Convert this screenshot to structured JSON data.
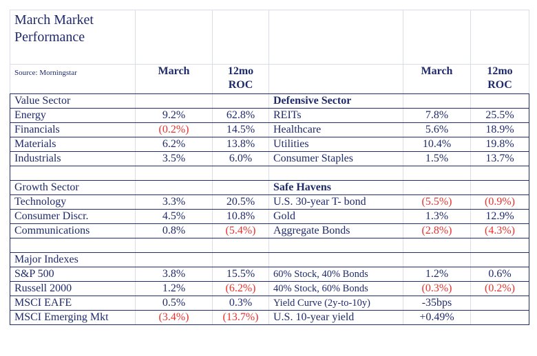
{
  "title_line1": "March Market",
  "title_line2": "Performance",
  "source": "Source: Morningstar",
  "col_march": "March",
  "col_roc_1": "12mo",
  "col_roc_2": "ROC",
  "left": [
    {
      "name": "Value Sector",
      "march": "",
      "roc": "",
      "heading": true
    },
    {
      "name": "Energy",
      "march": "9.2%",
      "roc": "62.8%"
    },
    {
      "name": "Financials",
      "march": "(0.2%)",
      "roc": "14.5%"
    },
    {
      "name": "Materials",
      "march": "6.2%",
      "roc": "13.8%"
    },
    {
      "name": "Industrials",
      "march": "3.5%",
      "roc": "6.0%"
    },
    {
      "name": "",
      "march": "",
      "roc": ""
    },
    {
      "name": "Growth Sector",
      "march": "",
      "roc": "",
      "heading": true
    },
    {
      "name": "Technology",
      "march": "3.3%",
      "roc": "20.5%"
    },
    {
      "name": "Consumer Discr.",
      "march": "4.5%",
      "roc": "10.8%"
    },
    {
      "name": "Communications",
      "march": "0.8%",
      "roc": "(5.4%)"
    },
    {
      "name": "",
      "march": "",
      "roc": ""
    },
    {
      "name": "Major Indexes",
      "march": "",
      "roc": "",
      "heading": true
    },
    {
      "name": "S&P 500",
      "march": "3.8%",
      "roc": "15.5%"
    },
    {
      "name": "Russell 2000",
      "march": "1.2%",
      "roc": "(6.2%)"
    },
    {
      "name": "MSCI EAFE",
      "march": "0.5%",
      "roc": "0.3%"
    },
    {
      "name": "MSCI Emerging Mkt",
      "march": "(3.4%)",
      "roc": "(13.7%)"
    }
  ],
  "right": [
    {
      "name": "Defensive Sector",
      "march": "",
      "roc": "",
      "heading": true
    },
    {
      "name": "REITs",
      "march": "7.8%",
      "roc": "25.5%"
    },
    {
      "name": "Healthcare",
      "march": "5.6%",
      "roc": "18.9%"
    },
    {
      "name": "Utilities",
      "march": "10.4%",
      "roc": "19.8%"
    },
    {
      "name": "Consumer Staples",
      "march": "1.5%",
      "roc": "13.7%"
    },
    {
      "name": "",
      "march": "",
      "roc": ""
    },
    {
      "name": "Safe Havens",
      "march": "",
      "roc": "",
      "heading": true
    },
    {
      "name": "U.S. 30-year T- bond",
      "march": "(5.5%)",
      "roc": "(0.9%)"
    },
    {
      "name": "Gold",
      "march": "1.3%",
      "roc": "12.9%"
    },
    {
      "name": "Aggregate Bonds",
      "march": "(2.8%)",
      "roc": "(4.3%)"
    },
    {
      "name": "",
      "march": "",
      "roc": ""
    },
    {
      "name": "",
      "march": "",
      "roc": ""
    },
    {
      "name": "60% Stock, 40% Bonds",
      "march": "1.2%",
      "roc": "0.6%",
      "small": true
    },
    {
      "name": "40% Stock, 60% Bonds",
      "march": "(0.3%)",
      "roc": "(0.2%)",
      "small": true
    },
    {
      "name": "Yield Curve (2y-to-10y)",
      "march": "-35bps",
      "roc": "",
      "small": true
    },
    {
      "name": "U.S. 10-year yield",
      "march": "+0.49%",
      "roc": ""
    }
  ]
}
